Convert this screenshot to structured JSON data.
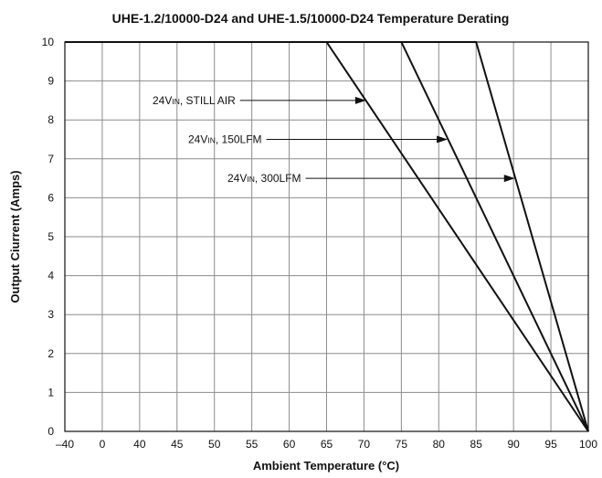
{
  "chart_data": {
    "type": "line",
    "title": "UHE-1.2/10000-D24 and UHE-1.5/10000-D24  Temperature Derating",
    "xlabel": "Ambient Temperature (°C)",
    "ylabel": "Output Ciurrent (Amps)",
    "x_tick_labels": [
      "–40",
      "0",
      "40",
      "45",
      "50",
      "55",
      "60",
      "65",
      "70",
      "75",
      "80",
      "85",
      "90",
      "95",
      "100"
    ],
    "y_ticks": [
      0,
      1,
      2,
      3,
      4,
      5,
      6,
      7,
      8,
      9,
      10
    ],
    "ylim": [
      0,
      10
    ],
    "grid": true,
    "series": [
      {
        "name_main": "24V",
        "name_sub": "IN",
        "name_rest": ", STILL AIR",
        "x": [
          -40,
          65,
          100
        ],
        "y": [
          10,
          10,
          0
        ],
        "annotation_target": {
          "x": 70.3,
          "y": 8.5
        }
      },
      {
        "name_main": "24V",
        "name_sub": "IN",
        "name_rest": ", 150LFM",
        "x": [
          -40,
          75,
          100
        ],
        "y": [
          10,
          10,
          0
        ],
        "annotation_target": {
          "x": 81.2,
          "y": 7.5
        }
      },
      {
        "name_main": "24V",
        "name_sub": "IN",
        "name_rest": ", 300LFM",
        "x": [
          -40,
          85,
          100
        ],
        "y": [
          10,
          10,
          0
        ],
        "annotation_target": {
          "x": 90.2,
          "y": 6.5
        }
      }
    ]
  }
}
